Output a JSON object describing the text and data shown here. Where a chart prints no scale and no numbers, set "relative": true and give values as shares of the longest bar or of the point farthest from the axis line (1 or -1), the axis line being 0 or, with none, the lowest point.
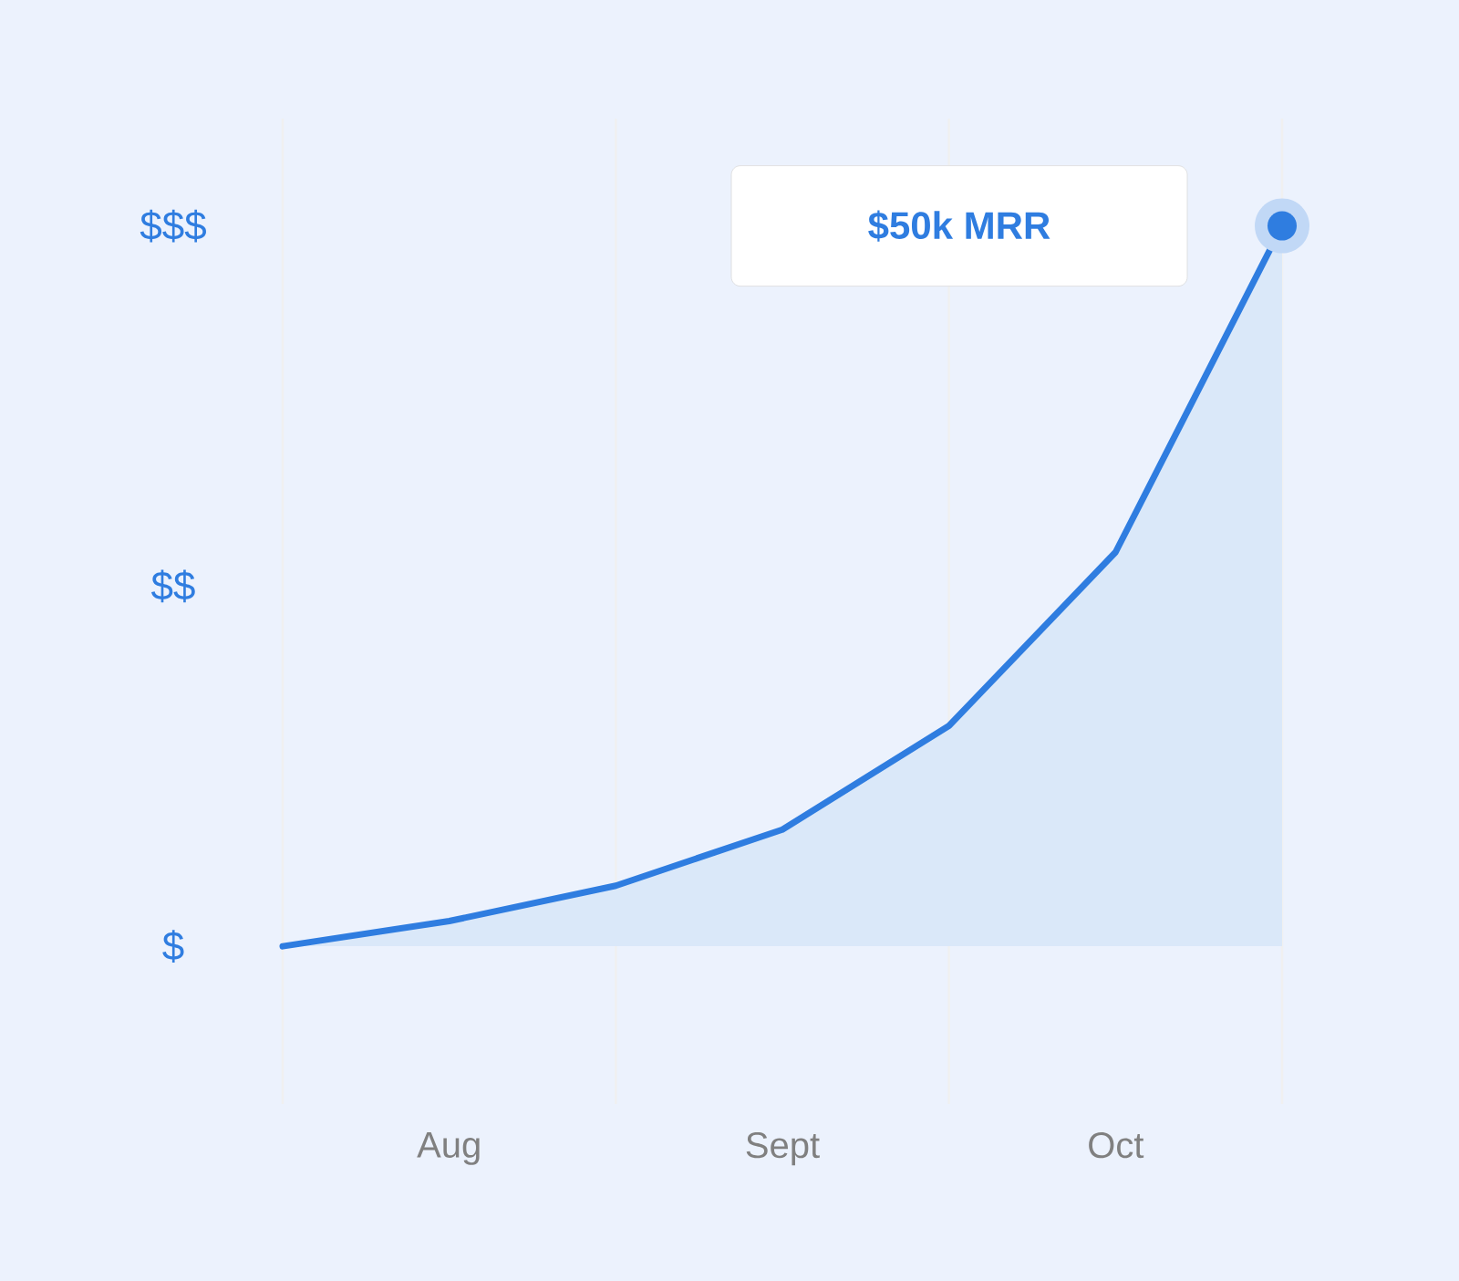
{
  "chart_data": {
    "type": "area",
    "relative": true,
    "categories": [
      null,
      "Aug",
      null,
      "Sept",
      null,
      "Oct",
      null
    ],
    "series": [
      {
        "color": "#2f7de0",
        "values": [
          0,
          0.035,
          0.084,
          0.162,
          0.306,
          0.547,
          1
        ]
      }
    ],
    "grid": "x",
    "annotations": [
      "$",
      "$$",
      "$$$",
      "**$50k MRR**"
    ]
  }
}
